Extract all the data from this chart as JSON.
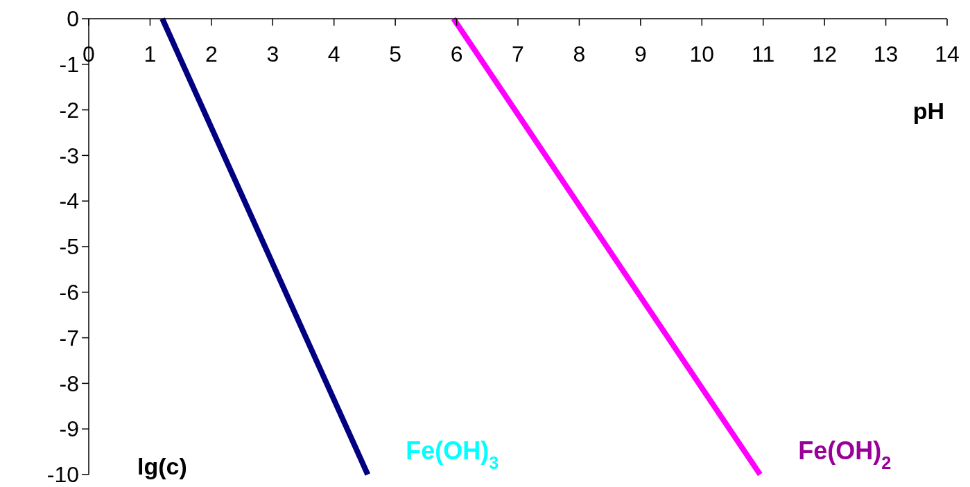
{
  "chart_data": {
    "type": "line",
    "xlabel": "pH",
    "ylabel": "lg(c)",
    "xlim": [
      0,
      14
    ],
    "xticks": [
      0,
      1,
      2,
      3,
      4,
      5,
      6,
      7,
      8,
      9,
      10,
      11,
      12,
      13,
      14
    ],
    "ylim": [
      -10,
      0
    ],
    "yticks": [
      0,
      -1,
      -2,
      -3,
      -4,
      -5,
      -6,
      -7,
      -8,
      -9,
      -10
    ],
    "grid": false,
    "marker": "none",
    "line_style": "solid",
    "series": [
      {
        "name": "Fe(OH)$_{3}$",
        "color": "#000080",
        "x": [
          1.2,
          4.55
        ],
        "values": [
          0,
          -10
        ]
      },
      {
        "name": "Fe(OH)$_{2}$",
        "color": "#ff00ff",
        "x": [
          5.95,
          10.95
        ],
        "values": [
          0,
          -10
        ]
      }
    ]
  }
}
